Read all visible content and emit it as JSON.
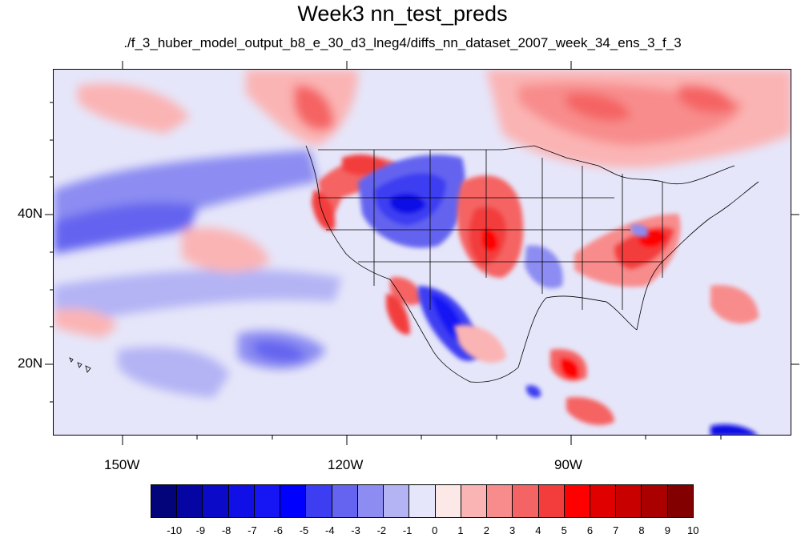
{
  "title": "Week3 nn_test_preds",
  "subtitle": "./f_3_huber_model_output_b8_e_30_d3_lneg4/diffs_nn_dataset_2007_week_34_ens_3_f_3",
  "lat_labels": [
    "40N",
    "20N"
  ],
  "lon_labels": [
    "150W",
    "120W",
    "90W"
  ],
  "colorbar": {
    "labels": [
      "-10",
      "-9",
      "-8",
      "-7",
      "-6",
      "-5",
      "-4",
      "-3",
      "-2",
      "-1",
      "0",
      "1",
      "2",
      "3",
      "4",
      "5",
      "6",
      "7",
      "8",
      "9",
      "10"
    ],
    "colors": [
      "#03037a",
      "#0505a3",
      "#0a0ac8",
      "#0f0fe6",
      "#1616f5",
      "#0000ff",
      "#3d3df2",
      "#6464f0",
      "#8c8cf2",
      "#b4b4f5",
      "#e6e6fa",
      "#fde8e8",
      "#fbb4b4",
      "#f88c8c",
      "#f56464",
      "#f33c3c",
      "#ff0000",
      "#e10000",
      "#c80000",
      "#aa0000",
      "#820000"
    ]
  },
  "map_extent": {
    "lon_min": -160,
    "lon_max": -62,
    "lat_min": 10,
    "lat_max": 59
  }
}
